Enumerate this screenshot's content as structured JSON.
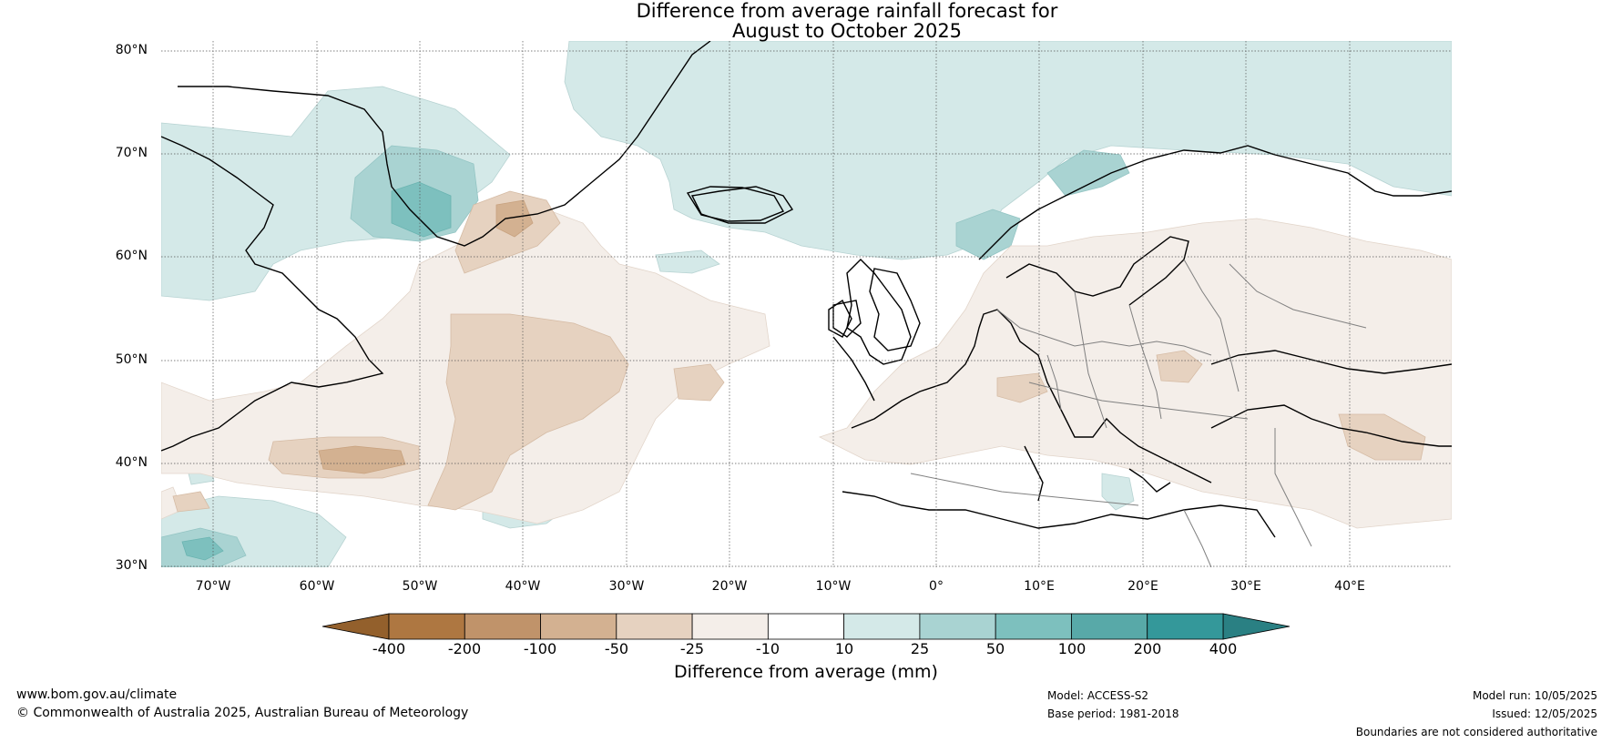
{
  "title": {
    "line1": "Difference from average rainfall forecast for",
    "line2": "August to October 2025"
  },
  "axes": {
    "lat_labels": [
      "80°N",
      "70°N",
      "60°N",
      "50°N",
      "40°N",
      "30°N"
    ],
    "lon_labels": [
      "70°W",
      "60°W",
      "50°W",
      "40°W",
      "30°W",
      "20°W",
      "10°W",
      "0°",
      "10°E",
      "20°E",
      "30°E",
      "40°E"
    ]
  },
  "colorbar": {
    "ticks": [
      "-400",
      "-200",
      "-100",
      "-50",
      "-25",
      "-10",
      "10",
      "25",
      "50",
      "100",
      "200",
      "400"
    ],
    "colors": [
      "#93602c",
      "#ae7741",
      "#c0936a",
      "#d3b191",
      "#e6d2c0",
      "#f4eee9",
      "#ffffff",
      "#d4e9e8",
      "#a9d3d2",
      "#7dc0be",
      "#58a9a8",
      "#34989a",
      "#2a8083"
    ],
    "label": "Difference from average (mm)"
  },
  "footer": {
    "url": "www.bom.gov.au/climate",
    "copyright": "© Commonwealth of Australia 2025, Australian Bureau of Meteorology",
    "model": "Model: ACCESS-S2",
    "base_period": "Base period: 1981-2018",
    "model_run": "Model run: 10/05/2025",
    "issued": "Issued: 12/05/2025",
    "disclaimer": "Boundaries are not considered authoritative"
  }
}
